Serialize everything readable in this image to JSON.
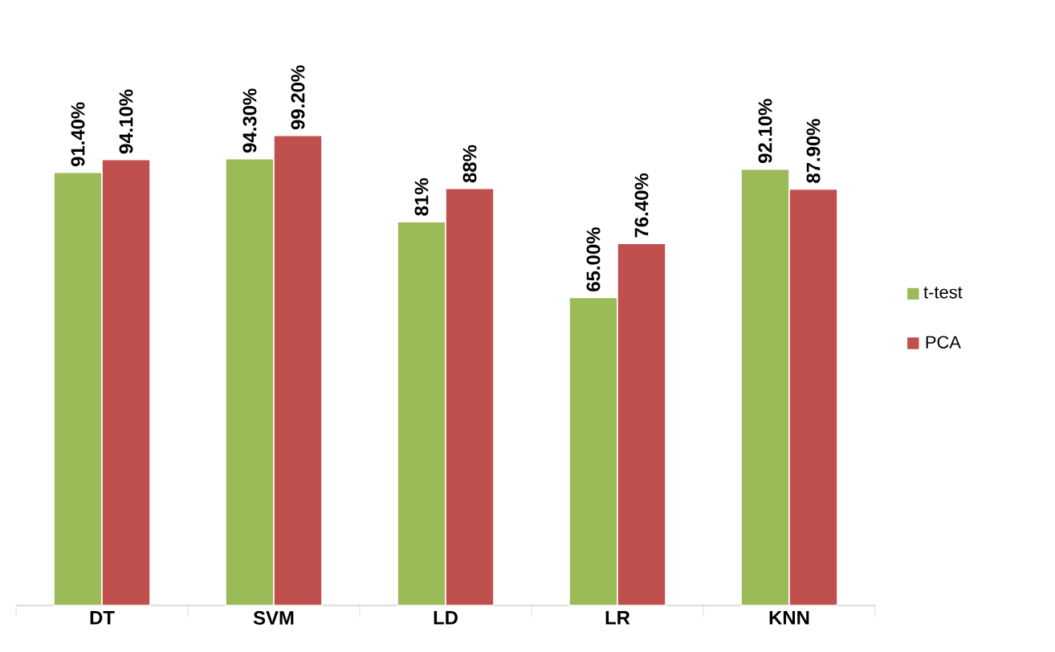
{
  "chart_data": {
    "type": "bar",
    "categories": [
      "DT",
      "SVM",
      "LD",
      "LR",
      "KNN"
    ],
    "series": [
      {
        "name": "t-test",
        "color": "#9bbb59",
        "values": [
          91.4,
          94.3,
          81,
          65,
          92.1
        ],
        "value_labels": [
          "91.40%",
          "94.30%",
          "81%",
          "65.00%",
          "92.10%"
        ]
      },
      {
        "name": "PCA",
        "color": "#c0504d",
        "values": [
          94.1,
          99.2,
          88,
          76.4,
          87.9
        ],
        "value_labels": [
          "94.10%",
          "99.20%",
          "88%",
          "76.40%",
          "87.90%"
        ]
      }
    ],
    "legend": "right"
  }
}
